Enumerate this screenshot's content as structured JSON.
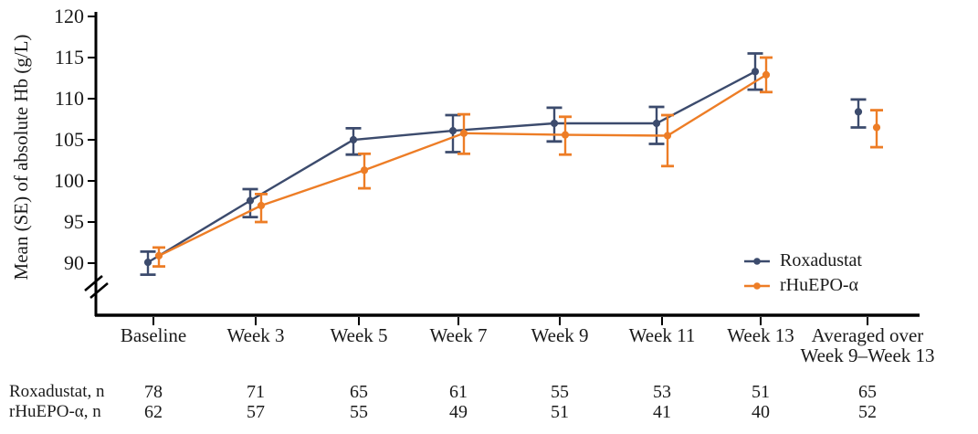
{
  "figure": {
    "background": "#ffffff",
    "text_color": "#1a1a1a",
    "axis_color": "#000000"
  },
  "chart_data": {
    "type": "line",
    "title": "",
    "xlabel": "",
    "ylabel": "Mean (SE) of absolute Hb (g/L)",
    "y_axis_break": true,
    "grid": false,
    "legend_position": "inside-bottom-right",
    "yticks": [
      90,
      95,
      100,
      105,
      110,
      115,
      120
    ],
    "ylim": [
      88,
      120
    ],
    "categories": [
      "Baseline",
      "Week 3",
      "Week 5",
      "Week 7",
      "Week 9",
      "Week 11",
      "Week 13",
      "Averaged over\nWeek 9–Week 13"
    ],
    "averaged_point_isolated": true,
    "error_bars": "SE",
    "series": [
      {
        "name": "Roxadustat",
        "color": "#3c4b6d",
        "marker": "circle",
        "values": [
          90.1,
          97.6,
          105.0,
          106.1,
          107.0,
          107.0,
          113.3,
          108.4
        ],
        "err_lo": [
          88.6,
          95.6,
          103.2,
          103.5,
          104.8,
          104.5,
          111.1,
          106.5
        ],
        "err_hi": [
          91.4,
          99.0,
          106.4,
          108.0,
          108.9,
          109.0,
          115.5,
          109.9
        ]
      },
      {
        "name": "rHuEPO-α",
        "color": "#ed7d26",
        "marker": "circle",
        "values": [
          90.9,
          97.0,
          101.3,
          105.8,
          105.6,
          105.5,
          112.9,
          106.5
        ],
        "err_lo": [
          89.6,
          95.0,
          99.1,
          103.3,
          103.2,
          101.8,
          110.8,
          104.1
        ],
        "err_hi": [
          91.9,
          98.4,
          103.3,
          108.1,
          107.8,
          108.0,
          115.0,
          108.6
        ]
      }
    ]
  },
  "n_table": {
    "rows": [
      {
        "label": "Roxadustat, n",
        "values": [
          "78",
          "71",
          "65",
          "61",
          "55",
          "53",
          "51",
          "65"
        ]
      },
      {
        "label": "rHuEPO-α, n",
        "values": [
          "62",
          "57",
          "55",
          "49",
          "51",
          "41",
          "40",
          "52"
        ]
      }
    ]
  }
}
